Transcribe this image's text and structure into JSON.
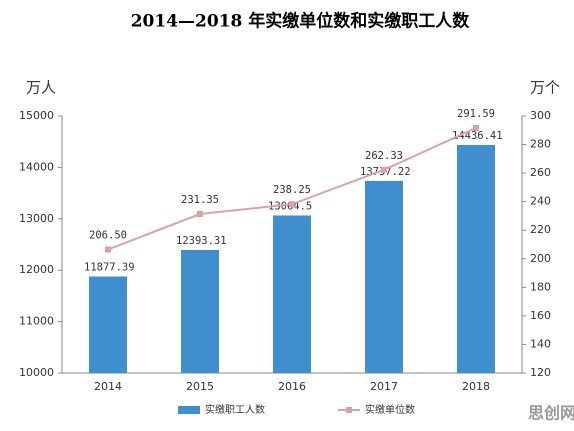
{
  "chart_data": {
    "type": "bar",
    "title": "2014—2018 年实缴单位数和实缴职工人数",
    "y_label": "万人",
    "y2_label": "万个",
    "categories": [
      "2014",
      "2015",
      "2016",
      "2017",
      "2018"
    ],
    "series": [
      {
        "name": "实缴职工人数",
        "type": "bar",
        "color": "#3f8fcf",
        "values": [
          11877.39,
          12393.31,
          13064.5,
          13737.22,
          14436.41
        ]
      },
      {
        "name": "实缴单位数",
        "type": "line",
        "axis": "y2",
        "color": "#d9a3a6",
        "values": [
          206.5,
          231.35,
          238.25,
          262.33,
          291.59
        ],
        "value_labels": [
          "206.50",
          "231.35",
          "238.25",
          "262.33",
          "291.59"
        ]
      }
    ],
    "ylim": [
      10000,
      15000
    ],
    "yticks": [
      10000,
      11000,
      12000,
      13000,
      14000,
      15000
    ],
    "y2lim": [
      120,
      300
    ],
    "y2ticks": [
      120,
      140,
      160,
      180,
      200,
      220,
      240,
      260,
      280,
      300
    ],
    "grid": false,
    "watermark": "思创网"
  }
}
